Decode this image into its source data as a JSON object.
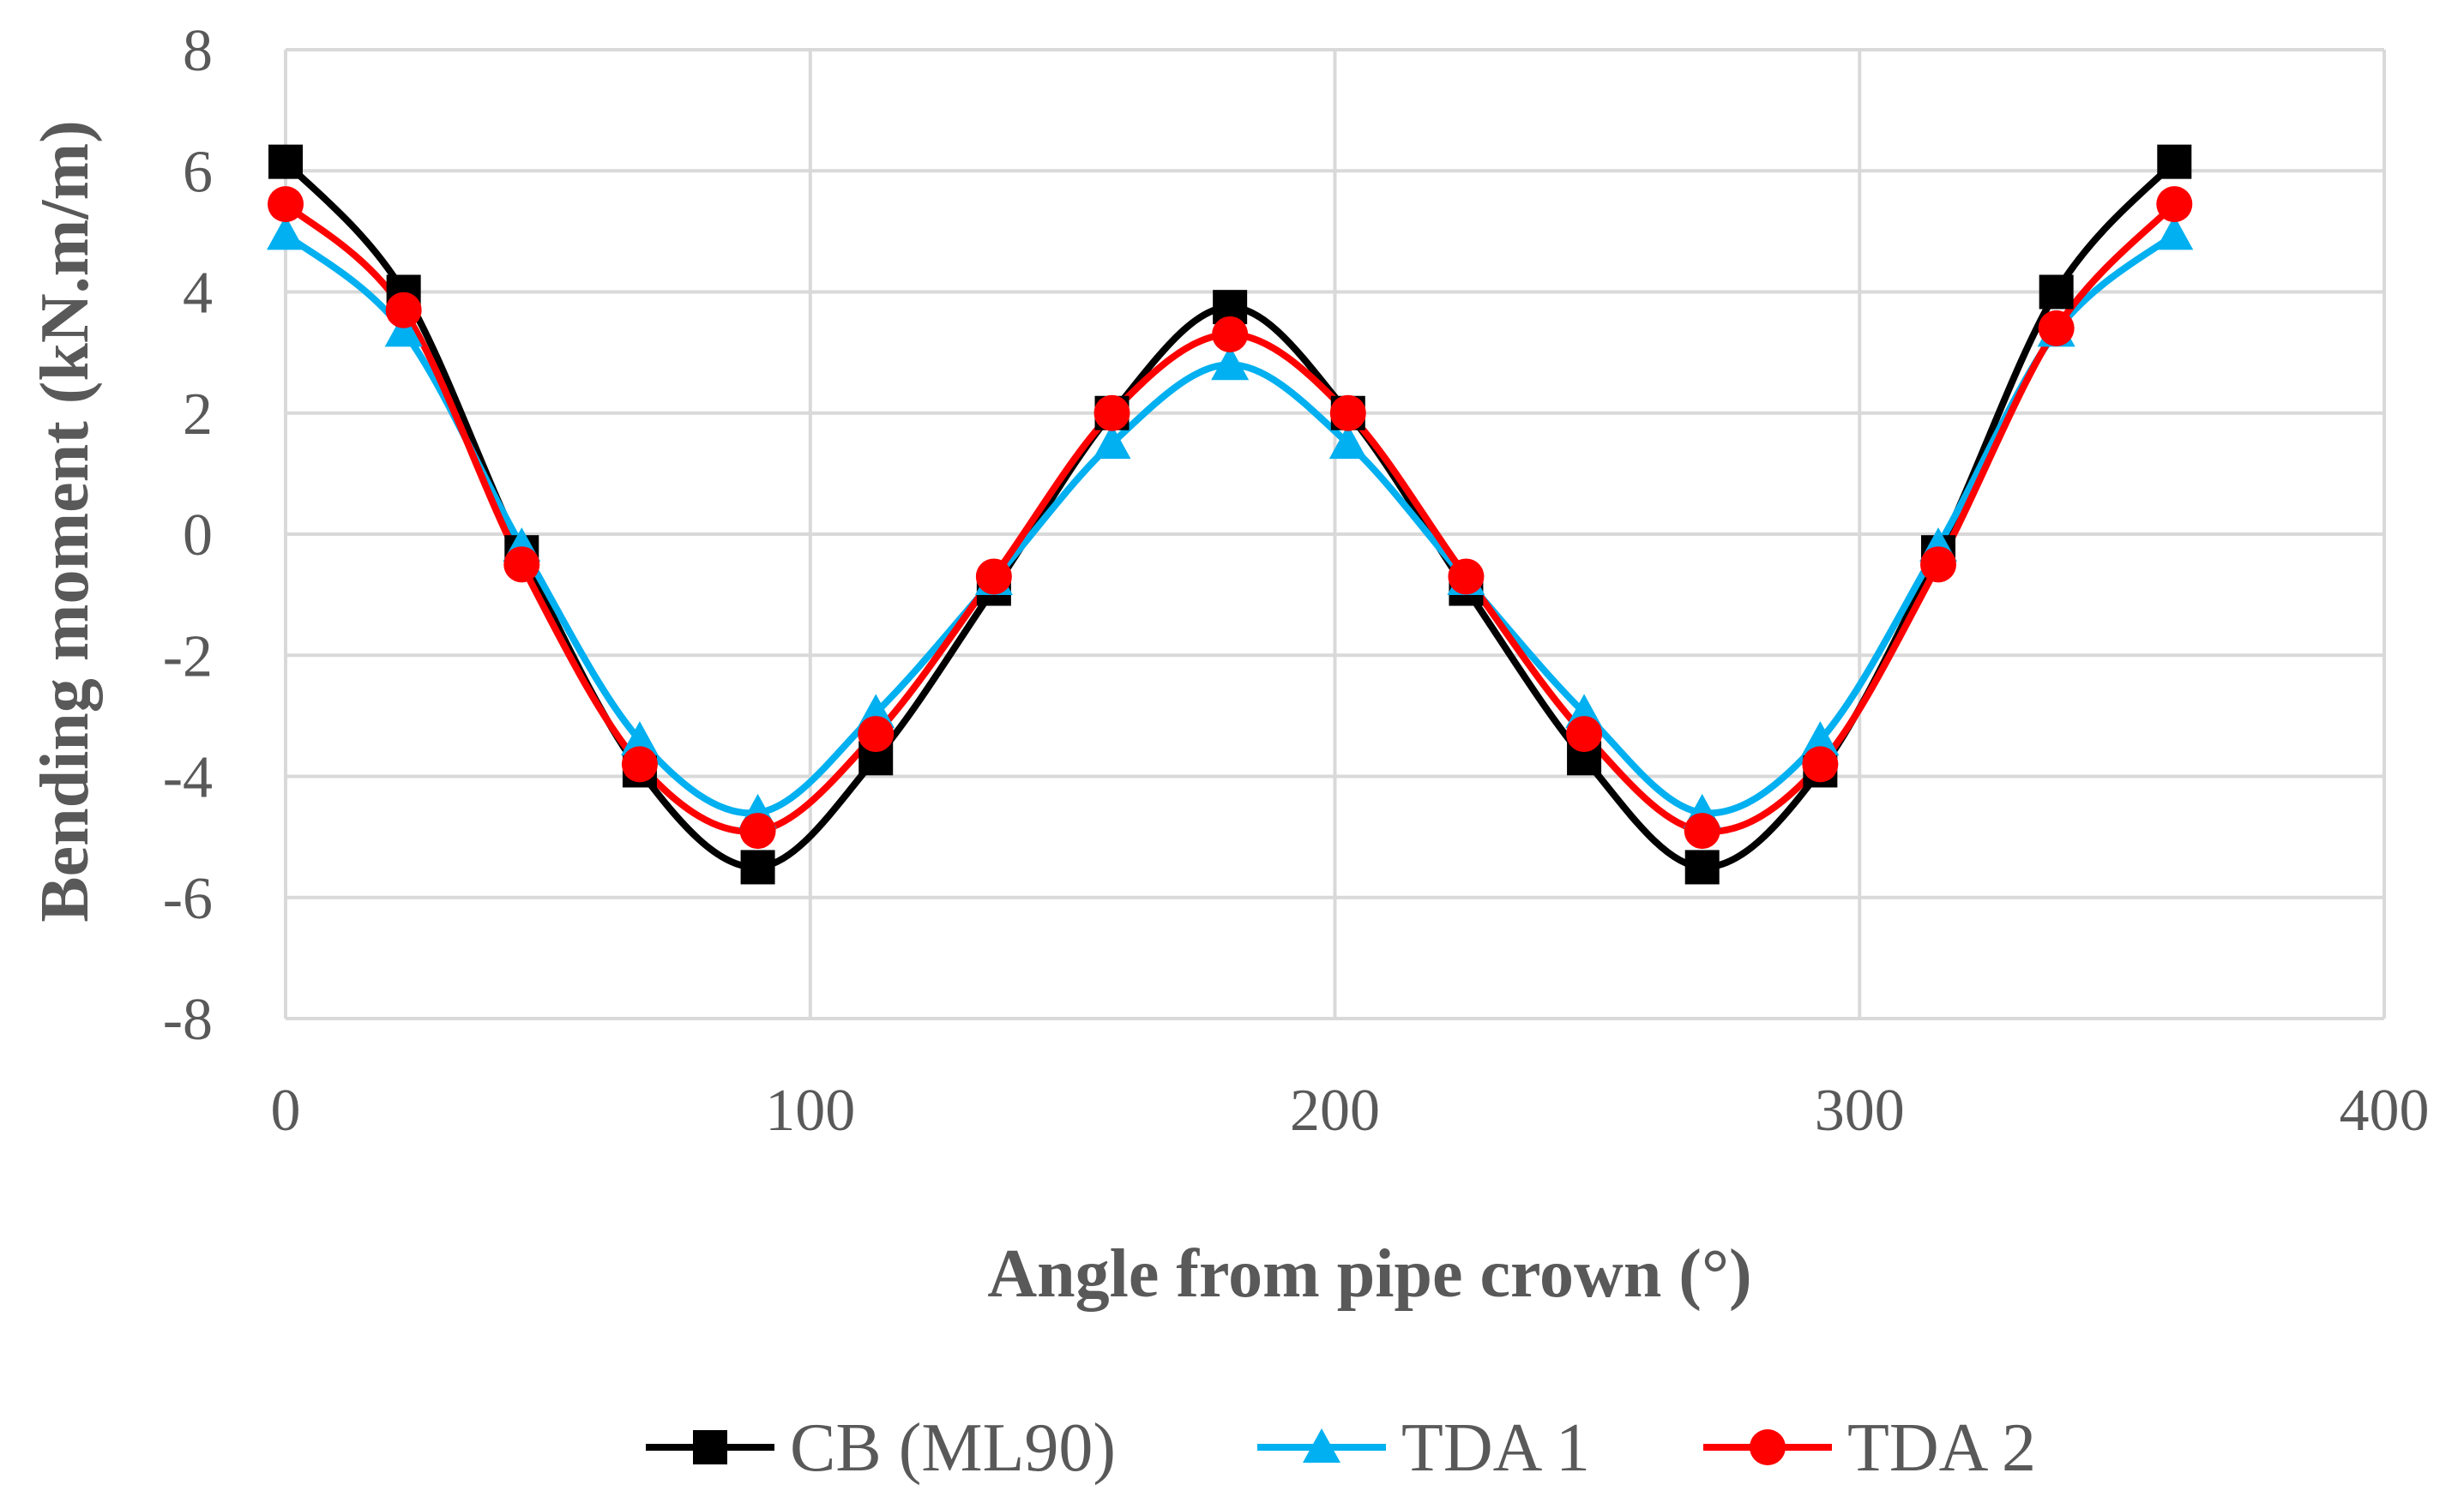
{
  "chart_data": {
    "type": "line",
    "title": "",
    "xlabel": "Angle from pipe crown (°)",
    "ylabel": "Bending moment (kN.m/m)",
    "xlim": [
      0,
      400
    ],
    "ylim": [
      -8,
      8
    ],
    "xticks": [
      0,
      100,
      200,
      300,
      400
    ],
    "yticks": [
      8,
      6,
      4,
      2,
      0,
      -2,
      -4,
      -6,
      -8
    ],
    "grid": true,
    "legend_position": "bottom",
    "x": [
      0,
      22.5,
      45,
      67.5,
      90,
      112.5,
      135,
      157.5,
      180,
      202.5,
      225,
      247.5,
      270,
      292.5,
      315,
      337.5,
      360
    ],
    "series": [
      {
        "name": "CB (ML90)",
        "color": "#000000",
        "marker": "square",
        "values": [
          6.15,
          4.0,
          -0.3,
          -3.9,
          -5.5,
          -3.7,
          -0.9,
          2.0,
          3.75,
          2.0,
          -0.9,
          -3.7,
          -5.5,
          -3.9,
          -0.3,
          4.0,
          6.15
        ]
      },
      {
        "name": "TDA 1",
        "color": "#00b0f0",
        "marker": "triangle",
        "values": [
          4.95,
          3.35,
          -0.2,
          -3.4,
          -4.6,
          -2.95,
          -0.75,
          1.5,
          2.8,
          1.5,
          -0.75,
          -2.95,
          -4.6,
          -3.4,
          -0.2,
          3.35,
          4.95
        ]
      },
      {
        "name": "TDA 2",
        "color": "#ff0000",
        "marker": "circle",
        "values": [
          5.45,
          3.7,
          -0.5,
          -3.8,
          -4.9,
          -3.3,
          -0.7,
          2.0,
          3.3,
          2.0,
          -0.7,
          -3.3,
          -4.9,
          -3.8,
          -0.5,
          3.4,
          5.45
        ]
      }
    ]
  }
}
